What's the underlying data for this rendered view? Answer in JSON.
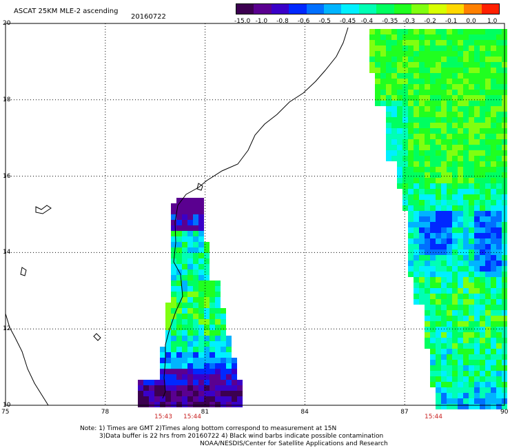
{
  "header": {
    "title": "ASCAT 25KM MLE-2 ascending",
    "date": "20160722"
  },
  "colorbar": {
    "tick_labels": [
      "-15.0",
      "-1.0",
      "-0.8",
      "-0.6",
      "-0.5",
      "-0.45",
      "-0.4",
      "-0.35",
      "-0.3",
      "-0.2",
      "-0.1",
      "0.0",
      "1.0"
    ],
    "colors": [
      "#3c0050",
      "#5a0090",
      "#3a00c8",
      "#0028ff",
      "#0070ff",
      "#00b4ff",
      "#00f0ff",
      "#00ffb4",
      "#00ff60",
      "#20ff20",
      "#80ff10",
      "#d8ff00",
      "#ffd800",
      "#ff8000",
      "#ff2000"
    ]
  },
  "axes": {
    "x_ticks": [
      "75",
      "78",
      "81",
      "84",
      "87",
      "90"
    ],
    "y_ticks": [
      "10",
      "12",
      "14",
      "16",
      "18",
      "20"
    ],
    "lon_range": [
      75,
      90
    ],
    "lat_range": [
      10,
      20
    ]
  },
  "swath_times": [
    "15:43",
    "15:44",
    "15:44"
  ],
  "notes": {
    "line1": "Note: 1) Times are GMT 2)Times along bottom correspond to measurement at 15N",
    "line2": "3)Data buffer is 22 hrs from 20160722 4) Black wind barbs indicate possible contamination",
    "line3": "NOAA/NESDIS/Center for Satellite Applications and Research"
  }
}
